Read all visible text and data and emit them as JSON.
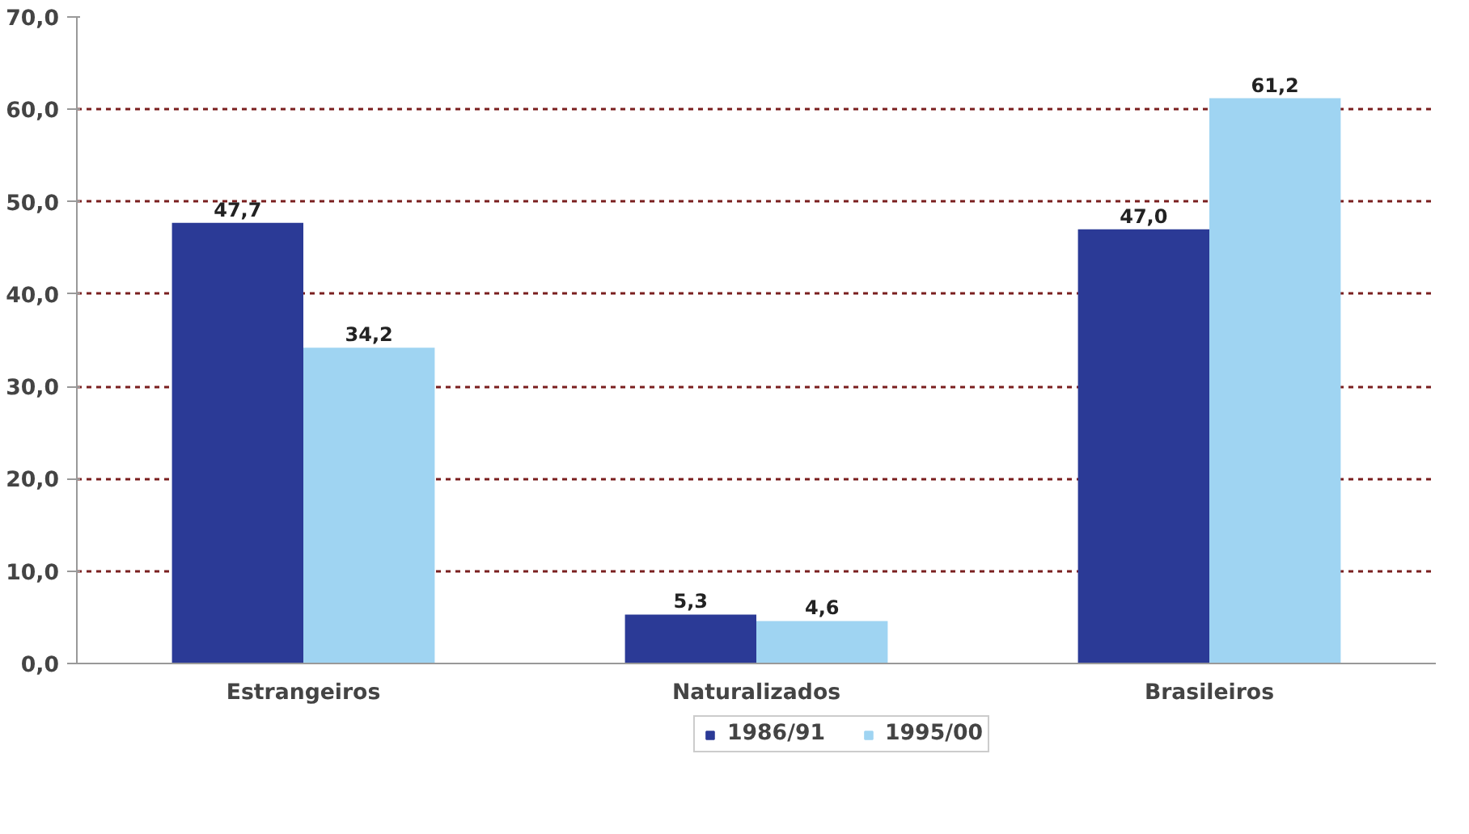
{
  "chart_data": {
    "type": "bar",
    "categories": [
      "Estrangeiros",
      "Naturalizados",
      "Brasileiros"
    ],
    "series": [
      {
        "name": "1986/91",
        "color": "#2b3a96",
        "values": [
          47.7,
          5.3,
          47.0
        ],
        "value_labels": [
          "47,7",
          "5,3",
          "47,0"
        ]
      },
      {
        "name": "1995/00",
        "color": "#9fd4f2",
        "values": [
          34.2,
          4.6,
          61.2
        ],
        "value_labels": [
          "34,2",
          "4,6",
          "61,2"
        ]
      }
    ],
    "ylim": [
      0,
      70
    ],
    "yticks": [
      {
        "value": 0,
        "label": "0,0"
      },
      {
        "value": 10,
        "label": "10,0"
      },
      {
        "value": 20,
        "label": "20,0"
      },
      {
        "value": 30,
        "label": "30,0"
      },
      {
        "value": 40,
        "label": "40,0"
      },
      {
        "value": 50,
        "label": "50,0"
      },
      {
        "value": 60,
        "label": "60,0"
      },
      {
        "value": 70,
        "label": "70,0"
      }
    ],
    "grid": "y",
    "legend": "bottom"
  }
}
